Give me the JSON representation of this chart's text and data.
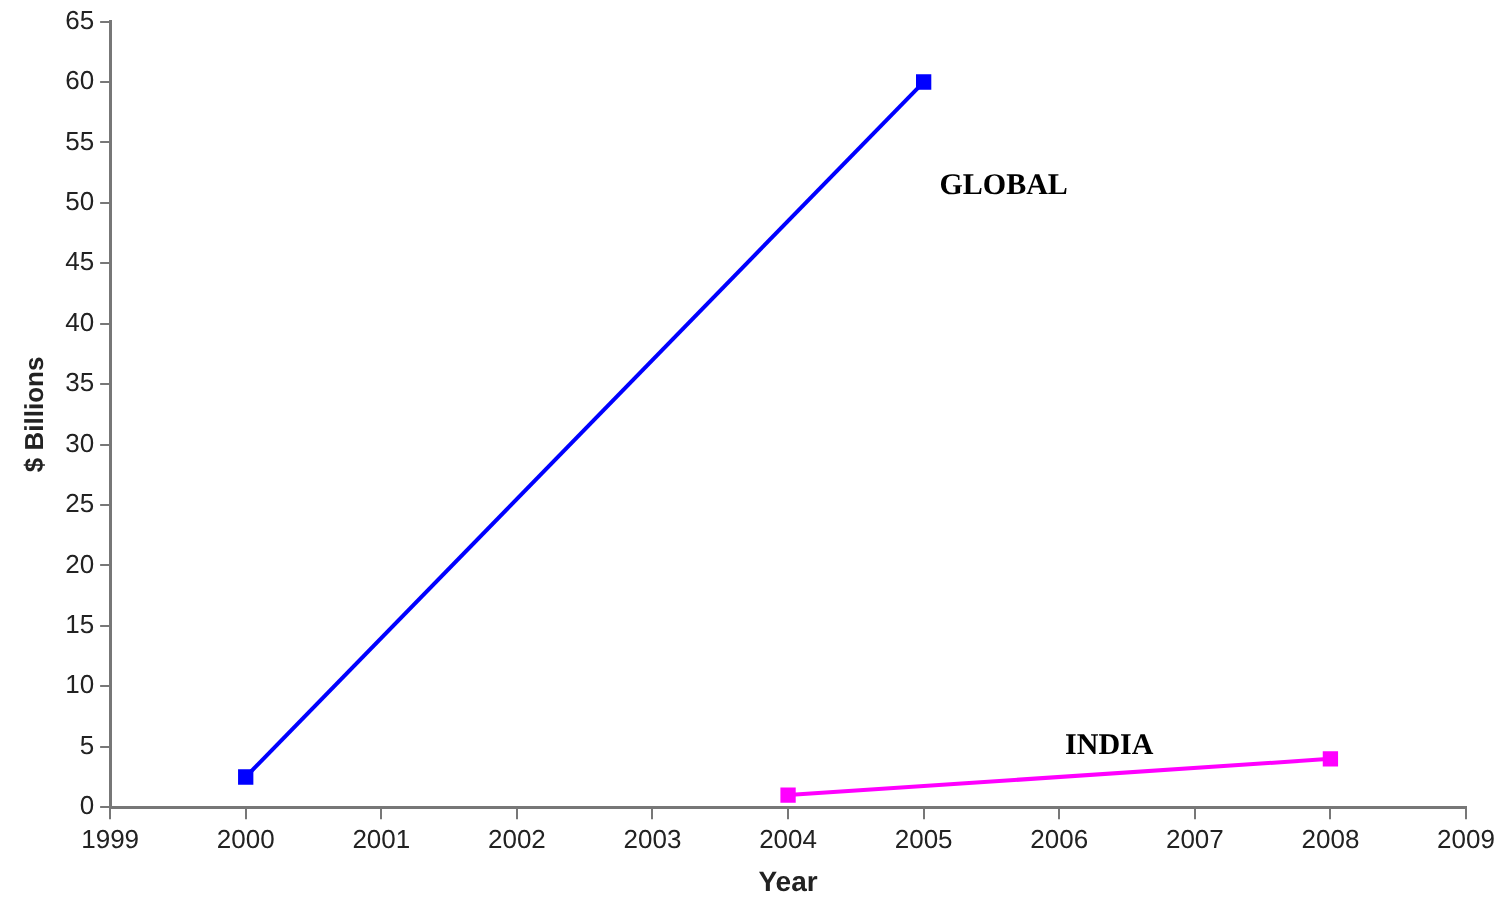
{
  "chart_data": {
    "type": "line",
    "xlabel": "Year",
    "ylabel": "$ Billions",
    "series": [
      {
        "name": "GLOBAL",
        "color": "#0000ff",
        "x": [
          2000,
          2005
        ],
        "values": [
          2.5,
          60
        ]
      },
      {
        "name": "INDIA",
        "color": "#ff00ff",
        "x": [
          2004,
          2008
        ],
        "values": [
          1,
          4
        ]
      }
    ],
    "xlim": [
      1999,
      2009
    ],
    "xticks": [
      1999,
      2000,
      2001,
      2002,
      2003,
      2004,
      2005,
      2006,
      2007,
      2008,
      2009
    ],
    "ylim": [
      0,
      65
    ],
    "yticks": [
      0,
      5,
      10,
      15,
      20,
      25,
      30,
      35,
      40,
      45,
      50,
      55,
      60,
      65
    ],
    "grid": false,
    "legend": false,
    "marker": "square",
    "line_style": "solid"
  }
}
